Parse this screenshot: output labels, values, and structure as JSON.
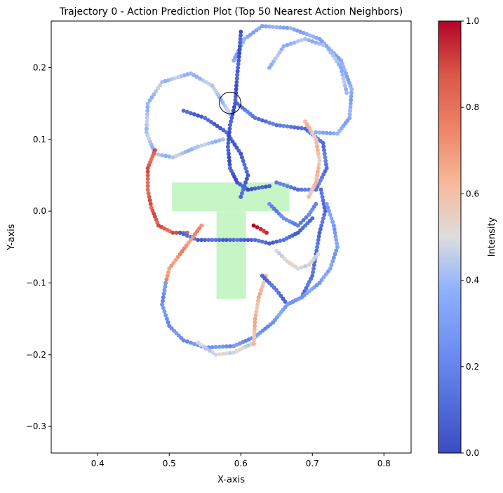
{
  "chart_data": {
    "type": "scatter",
    "title": "Trajectory 0 - Action Prediction Plot (Top 50 Nearest Action Neighbors)",
    "xlabel": "X-axis",
    "ylabel": "Y-axis",
    "xlim": [
      0.335,
      0.838
    ],
    "ylim": [
      -0.337,
      0.265
    ],
    "xticks": [
      0.4,
      0.5,
      0.6,
      0.7,
      0.8
    ],
    "xtick_labels": [
      "0.4",
      "0.5",
      "0.6",
      "0.7",
      "0.8"
    ],
    "yticks": [
      0.2,
      0.1,
      0.0,
      -0.1,
      -0.2,
      -0.3
    ],
    "ytick_labels": [
      "0.2",
      "0.1",
      "0.0",
      "−0.1",
      "−0.2",
      "−0.3"
    ],
    "grid": false,
    "colorbar": {
      "label": "Intensity",
      "colormap": "coolwarm",
      "range": [
        0.0,
        1.0
      ],
      "ticks": [
        0.0,
        0.2,
        0.4,
        0.6,
        0.8,
        1.0
      ],
      "tick_labels": [
        "0.0",
        "0.2",
        "0.4",
        "0.6",
        "0.8",
        "1.0"
      ]
    },
    "target_shape": {
      "shape": "T",
      "color": "#c6f5c6",
      "top_bar": {
        "x": [
          0.504,
          0.668
        ],
        "y": [
          0.0,
          0.04
        ]
      },
      "stem": {
        "x": [
          0.566,
          0.607
        ],
        "y": [
          -0.122,
          0.0
        ]
      }
    },
    "goal_circle": {
      "x": 0.585,
      "y": 0.151,
      "r": 0.015
    },
    "trajectories": [
      {
        "intensity": 0.42,
        "points": [
          [
            0.585,
            0.135
          ],
          [
            0.56,
            0.175
          ],
          [
            0.53,
            0.192
          ],
          [
            0.49,
            0.18
          ],
          [
            0.47,
            0.15
          ],
          [
            0.468,
            0.11
          ],
          [
            0.48,
            0.08
          ],
          [
            0.505,
            0.075
          ],
          [
            0.54,
            0.09
          ],
          [
            0.575,
            0.1
          ]
        ]
      },
      {
        "intensity": 0.08,
        "points": [
          [
            0.52,
            0.14
          ],
          [
            0.55,
            0.13
          ],
          [
            0.58,
            0.11
          ],
          [
            0.6,
            0.08
          ],
          [
            0.61,
            0.05
          ],
          [
            0.6,
            0.02
          ]
        ]
      },
      {
        "intensity": 0.85,
        "points": [
          [
            0.48,
            0.085
          ],
          [
            0.47,
            0.06
          ],
          [
            0.47,
            0.03
          ],
          [
            0.475,
            0.005
          ],
          [
            0.485,
            -0.02
          ],
          [
            0.505,
            -0.03
          ],
          [
            0.525,
            -0.03
          ]
        ]
      },
      {
        "intensity": 0.35,
        "points": [
          [
            0.59,
            0.21
          ],
          [
            0.605,
            0.24
          ],
          [
            0.63,
            0.258
          ],
          [
            0.67,
            0.255
          ],
          [
            0.71,
            0.24
          ],
          [
            0.74,
            0.21
          ],
          [
            0.755,
            0.17
          ],
          [
            0.752,
            0.13
          ],
          [
            0.735,
            0.108
          ],
          [
            0.705,
            0.11
          ]
        ]
      },
      {
        "intensity": 0.15,
        "points": [
          [
            0.595,
            0.15
          ],
          [
            0.62,
            0.13
          ],
          [
            0.65,
            0.12
          ],
          [
            0.69,
            0.115
          ],
          [
            0.715,
            0.095
          ],
          [
            0.72,
            0.06
          ],
          [
            0.705,
            0.03
          ],
          [
            0.68,
            0.03
          ],
          [
            0.65,
            0.04
          ]
        ]
      },
      {
        "intensity": 0.1,
        "points": [
          [
            0.515,
            -0.03
          ],
          [
            0.54,
            -0.04
          ],
          [
            0.57,
            -0.04
          ],
          [
            0.6,
            -0.04
          ],
          [
            0.62,
            -0.04
          ],
          [
            0.64,
            -0.045
          ],
          [
            0.66,
            -0.04
          ],
          [
            0.68,
            -0.03
          ],
          [
            0.7,
            -0.01
          ]
        ]
      },
      {
        "intensity": 0.72,
        "points": [
          [
            0.545,
            -0.02
          ],
          [
            0.53,
            -0.04
          ],
          [
            0.515,
            -0.06
          ],
          [
            0.5,
            -0.08
          ],
          [
            0.495,
            -0.1
          ]
        ]
      },
      {
        "intensity": 0.25,
        "points": [
          [
            0.495,
            -0.1
          ],
          [
            0.49,
            -0.13
          ],
          [
            0.5,
            -0.16
          ],
          [
            0.52,
            -0.18
          ],
          [
            0.55,
            -0.19
          ],
          [
            0.59,
            -0.188
          ],
          [
            0.62,
            -0.175
          ],
          [
            0.645,
            -0.155
          ]
        ]
      },
      {
        "intensity": 0.48,
        "points": [
          [
            0.54,
            -0.183
          ],
          [
            0.565,
            -0.2
          ],
          [
            0.59,
            -0.197
          ],
          [
            0.615,
            -0.185
          ]
        ]
      },
      {
        "intensity": 0.62,
        "points": [
          [
            0.618,
            -0.185
          ],
          [
            0.62,
            -0.15
          ],
          [
            0.625,
            -0.12
          ],
          [
            0.635,
            -0.09
          ]
        ]
      },
      {
        "intensity": 0.12,
        "points": [
          [
            0.63,
            -0.09
          ],
          [
            0.65,
            -0.11
          ],
          [
            0.665,
            -0.13
          ],
          [
            0.685,
            -0.12
          ],
          [
            0.7,
            -0.09
          ],
          [
            0.705,
            -0.06
          ],
          [
            0.71,
            -0.03
          ],
          [
            0.718,
            0.0
          ],
          [
            0.712,
            0.03
          ]
        ]
      },
      {
        "intensity": 0.3,
        "points": [
          [
            0.645,
            -0.155
          ],
          [
            0.665,
            -0.13
          ],
          [
            0.685,
            -0.12
          ],
          [
            0.71,
            -0.1
          ],
          [
            0.725,
            -0.08
          ],
          [
            0.735,
            -0.05
          ],
          [
            0.73,
            -0.02
          ],
          [
            0.72,
            0.01
          ]
        ]
      },
      {
        "intensity": 0.05,
        "points": [
          [
            0.6,
            0.25
          ],
          [
            0.598,
            0.22
          ],
          [
            0.595,
            0.19
          ],
          [
            0.592,
            0.15
          ],
          [
            0.585,
            0.12
          ],
          [
            0.582,
            0.09
          ],
          [
            0.585,
            0.06
          ],
          [
            0.595,
            0.04
          ],
          [
            0.61,
            0.03
          ],
          [
            0.64,
            0.035
          ]
        ]
      },
      {
        "intensity": 0.6,
        "points": [
          [
            0.69,
            0.125
          ],
          [
            0.705,
            0.1
          ],
          [
            0.71,
            0.07
          ],
          [
            0.705,
            0.04
          ],
          [
            0.695,
            0.02
          ]
        ]
      },
      {
        "intensity": 0.95,
        "points": [
          [
            0.618,
            -0.02
          ],
          [
            0.628,
            -0.025
          ],
          [
            0.636,
            -0.03
          ]
        ]
      },
      {
        "intensity": 0.2,
        "points": [
          [
            0.64,
            0.01
          ],
          [
            0.66,
            -0.01
          ],
          [
            0.68,
            -0.02
          ],
          [
            0.695,
            -0.005
          ],
          [
            0.705,
            0.01
          ]
        ]
      },
      {
        "intensity": 0.5,
        "points": [
          [
            0.65,
            -0.055
          ],
          [
            0.665,
            -0.07
          ],
          [
            0.68,
            -0.08
          ],
          [
            0.695,
            -0.075
          ],
          [
            0.708,
            -0.06
          ]
        ]
      },
      {
        "intensity": 0.4,
        "points": [
          [
            0.64,
            0.2
          ],
          [
            0.66,
            0.23
          ],
          [
            0.69,
            0.24
          ],
          [
            0.72,
            0.23
          ],
          [
            0.74,
            0.2
          ],
          [
            0.748,
            0.165
          ]
        ]
      }
    ]
  }
}
